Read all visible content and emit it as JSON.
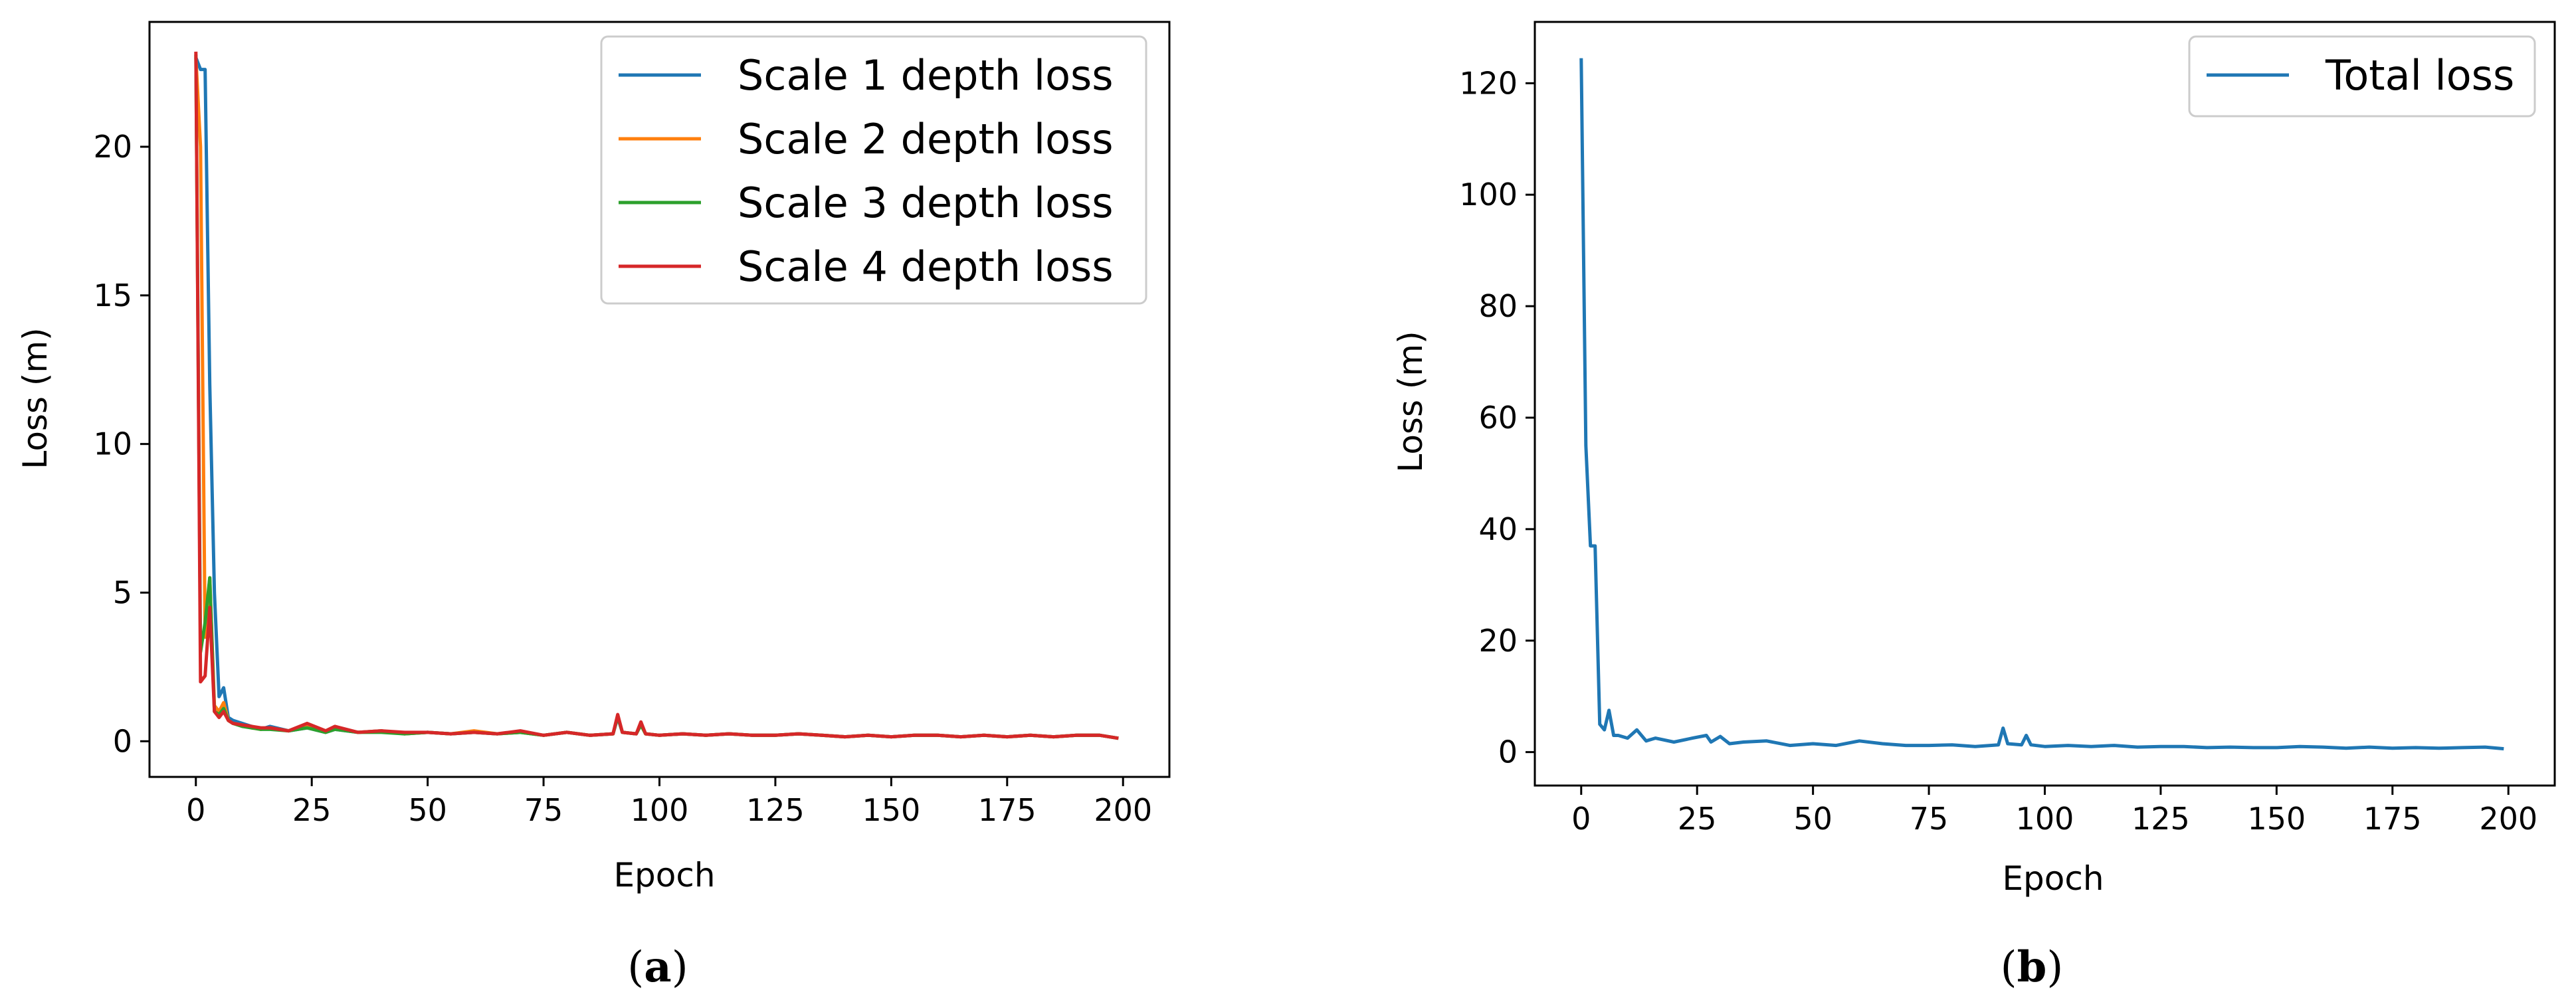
{
  "captions": {
    "a_open": "(",
    "a_letter": "a",
    "a_close": ")",
    "b_open": "(",
    "b_letter": "b",
    "b_close": ")"
  },
  "chart_data": [
    {
      "id": "a",
      "type": "line",
      "xlabel": "Epoch",
      "ylabel": "Loss (m)",
      "xlim": [
        -10,
        210
      ],
      "ylim": [
        -1.2,
        24.2
      ],
      "xticks": [
        0,
        25,
        50,
        75,
        100,
        125,
        150,
        175,
        200
      ],
      "yticks": [
        0,
        5,
        10,
        15,
        20
      ],
      "grid": false,
      "legend_position": "top-right",
      "series": [
        {
          "name": "Scale 1 depth loss",
          "color": "#1f77b4",
          "x": [
            0,
            1,
            2,
            3,
            4,
            5,
            6,
            7,
            8,
            10,
            12,
            14,
            16,
            20,
            24,
            28,
            30,
            35,
            40,
            45,
            50,
            55,
            60,
            65,
            70,
            75,
            80,
            85,
            90,
            91,
            92,
            95,
            96,
            97,
            100,
            105,
            110,
            115,
            120,
            125,
            130,
            135,
            140,
            145,
            150,
            155,
            160,
            165,
            170,
            175,
            180,
            185,
            190,
            195,
            199
          ],
          "y": [
            23.0,
            22.6,
            22.6,
            12.0,
            5.0,
            1.5,
            1.8,
            0.8,
            0.7,
            0.6,
            0.5,
            0.4,
            0.5,
            0.35,
            0.45,
            0.3,
            0.4,
            0.3,
            0.35,
            0.25,
            0.3,
            0.25,
            0.3,
            0.25,
            0.3,
            0.2,
            0.3,
            0.2,
            0.25,
            0.8,
            0.3,
            0.25,
            0.6,
            0.25,
            0.2,
            0.25,
            0.2,
            0.25,
            0.2,
            0.2,
            0.25,
            0.2,
            0.15,
            0.2,
            0.15,
            0.2,
            0.2,
            0.15,
            0.2,
            0.15,
            0.2,
            0.15,
            0.2,
            0.2,
            0.1
          ]
        },
        {
          "name": "Scale 2 depth loss",
          "color": "#ff7f0e",
          "x": [
            0,
            1,
            2,
            3,
            4,
            5,
            6,
            7,
            8,
            10,
            12,
            14,
            16,
            20,
            24,
            28,
            30,
            35,
            40,
            45,
            50,
            55,
            60,
            65,
            70,
            75,
            80,
            85,
            90,
            91,
            92,
            95,
            96,
            97,
            100,
            105,
            110,
            115,
            120,
            125,
            130,
            135,
            140,
            145,
            150,
            155,
            160,
            165,
            170,
            175,
            180,
            185,
            190,
            195,
            199
          ],
          "y": [
            23.0,
            20.0,
            3.5,
            5.5,
            1.2,
            1.0,
            1.3,
            0.7,
            0.6,
            0.55,
            0.45,
            0.4,
            0.45,
            0.35,
            0.5,
            0.3,
            0.45,
            0.3,
            0.35,
            0.25,
            0.3,
            0.25,
            0.35,
            0.25,
            0.3,
            0.2,
            0.3,
            0.2,
            0.25,
            0.85,
            0.3,
            0.25,
            0.55,
            0.25,
            0.2,
            0.25,
            0.2,
            0.25,
            0.2,
            0.2,
            0.25,
            0.2,
            0.15,
            0.2,
            0.15,
            0.2,
            0.2,
            0.15,
            0.2,
            0.15,
            0.2,
            0.15,
            0.2,
            0.2,
            0.1
          ]
        },
        {
          "name": "Scale 3 depth loss",
          "color": "#2ca02c",
          "x": [
            0,
            1,
            2,
            3,
            4,
            5,
            6,
            7,
            8,
            10,
            12,
            14,
            16,
            20,
            24,
            28,
            30,
            35,
            40,
            45,
            50,
            55,
            60,
            65,
            70,
            75,
            80,
            85,
            90,
            91,
            92,
            95,
            96,
            97,
            100,
            105,
            110,
            115,
            120,
            125,
            130,
            135,
            140,
            145,
            150,
            155,
            160,
            165,
            170,
            175,
            180,
            185,
            190,
            195,
            199
          ],
          "y": [
            23.1,
            3.0,
            4.0,
            5.5,
            1.0,
            0.9,
            1.1,
            0.7,
            0.6,
            0.5,
            0.45,
            0.4,
            0.4,
            0.35,
            0.45,
            0.3,
            0.4,
            0.3,
            0.3,
            0.25,
            0.3,
            0.25,
            0.3,
            0.25,
            0.3,
            0.2,
            0.3,
            0.2,
            0.25,
            0.85,
            0.3,
            0.25,
            0.55,
            0.25,
            0.2,
            0.25,
            0.2,
            0.25,
            0.2,
            0.2,
            0.25,
            0.2,
            0.15,
            0.2,
            0.15,
            0.2,
            0.2,
            0.15,
            0.2,
            0.15,
            0.2,
            0.15,
            0.2,
            0.2,
            0.1
          ]
        },
        {
          "name": "Scale 4 depth loss",
          "color": "#d62728",
          "x": [
            0,
            1,
            2,
            3,
            4,
            5,
            6,
            7,
            8,
            10,
            12,
            14,
            16,
            20,
            24,
            28,
            30,
            35,
            40,
            45,
            50,
            55,
            60,
            65,
            70,
            75,
            80,
            85,
            90,
            91,
            92,
            95,
            96,
            97,
            100,
            105,
            110,
            115,
            120,
            125,
            130,
            135,
            140,
            145,
            150,
            155,
            160,
            165,
            170,
            175,
            180,
            185,
            190,
            195,
            199
          ],
          "y": [
            23.2,
            2.0,
            2.2,
            4.5,
            1.0,
            0.8,
            1.0,
            0.7,
            0.6,
            0.55,
            0.5,
            0.45,
            0.45,
            0.35,
            0.6,
            0.35,
            0.5,
            0.3,
            0.35,
            0.3,
            0.3,
            0.25,
            0.3,
            0.25,
            0.35,
            0.2,
            0.3,
            0.2,
            0.25,
            0.9,
            0.3,
            0.25,
            0.65,
            0.25,
            0.2,
            0.25,
            0.2,
            0.25,
            0.2,
            0.2,
            0.25,
            0.2,
            0.15,
            0.2,
            0.15,
            0.2,
            0.2,
            0.15,
            0.2,
            0.15,
            0.2,
            0.15,
            0.2,
            0.2,
            0.1
          ]
        }
      ]
    },
    {
      "id": "b",
      "type": "line",
      "xlabel": "Epoch",
      "ylabel": "Loss (m)",
      "xlim": [
        -10,
        210
      ],
      "ylim": [
        -6,
        131
      ],
      "xticks": [
        0,
        25,
        50,
        75,
        100,
        125,
        150,
        175,
        200
      ],
      "yticks": [
        0,
        20,
        40,
        60,
        80,
        100,
        120
      ],
      "grid": false,
      "legend_position": "top-right",
      "series": [
        {
          "name": "Total loss",
          "color": "#1f77b4",
          "x": [
            0,
            1,
            2,
            3,
            4,
            5,
            6,
            7,
            8,
            10,
            12,
            14,
            16,
            20,
            24,
            27,
            28,
            30,
            32,
            35,
            40,
            45,
            50,
            55,
            60,
            65,
            70,
            75,
            80,
            85,
            90,
            91,
            92,
            95,
            96,
            97,
            100,
            105,
            110,
            115,
            120,
            125,
            130,
            135,
            140,
            145,
            150,
            155,
            160,
            165,
            170,
            175,
            180,
            185,
            190,
            195,
            199
          ],
          "y": [
            124.5,
            55,
            37,
            37,
            5,
            4,
            7.5,
            3,
            3,
            2.5,
            4,
            2,
            2.5,
            1.8,
            2.5,
            3,
            1.8,
            2.8,
            1.5,
            1.8,
            2,
            1.2,
            1.5,
            1.2,
            2,
            1.5,
            1.2,
            1.2,
            1.3,
            1.0,
            1.3,
            4.3,
            1.5,
            1.3,
            3.0,
            1.3,
            1.0,
            1.2,
            1.0,
            1.2,
            0.9,
            1.0,
            1.0,
            0.8,
            0.9,
            0.8,
            0.8,
            1.0,
            0.9,
            0.7,
            0.9,
            0.7,
            0.8,
            0.7,
            0.8,
            0.9,
            0.6
          ]
        }
      ]
    }
  ]
}
